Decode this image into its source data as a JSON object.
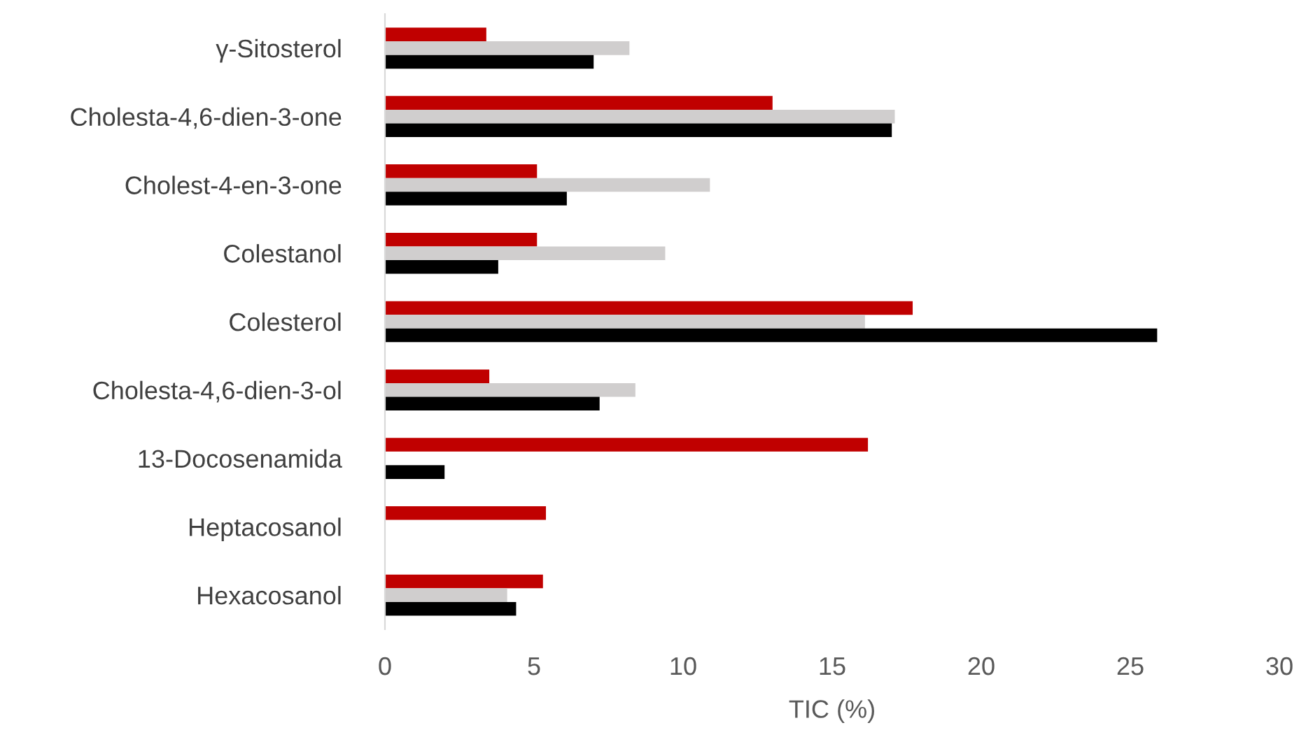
{
  "chart_data": {
    "type": "bar",
    "orientation": "horizontal",
    "xlabel": "TIC (%)",
    "categories": [
      "γ-Sitosterol",
      "Cholesta-4,6-dien-3-one",
      "Cholest-4-en-3-one",
      "Colestanol",
      "Colesterol",
      "Cholesta-4,6-dien-3-ol",
      "13-Docosenamida",
      "Heptacosanol",
      "Hexacosanol"
    ],
    "series": [
      {
        "color": "#c00000",
        "values": [
          3.4,
          13.0,
          5.1,
          5.1,
          17.7,
          3.5,
          16.2,
          5.4,
          5.3
        ]
      },
      {
        "color": "#d0cece",
        "values": [
          8.2,
          17.1,
          10.9,
          9.4,
          16.1,
          8.4,
          null,
          null,
          4.1
        ]
      },
      {
        "color": "#000000",
        "values": [
          7.0,
          17.0,
          6.1,
          3.8,
          25.9,
          7.2,
          2.0,
          null,
          4.4
        ]
      }
    ],
    "xlim": [
      0,
      30
    ],
    "xticks": [
      0,
      5,
      10,
      15,
      20,
      25,
      30
    ],
    "grid": false,
    "legend": false
  }
}
